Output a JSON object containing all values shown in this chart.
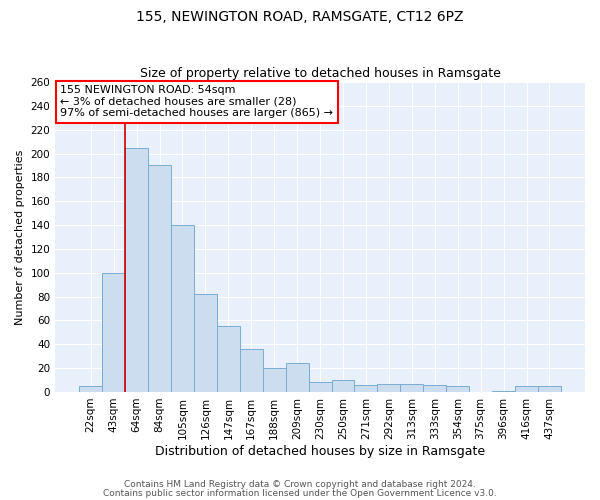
{
  "title": "155, NEWINGTON ROAD, RAMSGATE, CT12 6PZ",
  "subtitle": "Size of property relative to detached houses in Ramsgate",
  "xlabel": "Distribution of detached houses by size in Ramsgate",
  "ylabel": "Number of detached properties",
  "categories": [
    "22sqm",
    "43sqm",
    "64sqm",
    "84sqm",
    "105sqm",
    "126sqm",
    "147sqm",
    "167sqm",
    "188sqm",
    "209sqm",
    "230sqm",
    "250sqm",
    "271sqm",
    "292sqm",
    "313sqm",
    "333sqm",
    "354sqm",
    "375sqm",
    "396sqm",
    "416sqm",
    "437sqm"
  ],
  "values": [
    5,
    100,
    205,
    190,
    140,
    82,
    55,
    36,
    20,
    24,
    8,
    10,
    6,
    7,
    7,
    6,
    5,
    0,
    1,
    5,
    5
  ],
  "bar_color": "#cdddf0",
  "bar_edge_color": "#7aadd4",
  "red_line_x": 1.5,
  "annotation_text": "155 NEWINGTON ROAD: 54sqm\n← 3% of detached houses are smaller (28)\n97% of semi-detached houses are larger (865) →",
  "annotation_box_color": "white",
  "annotation_box_edge_color": "red",
  "red_line_color": "#cc0000",
  "ylim": [
    0,
    260
  ],
  "yticks": [
    0,
    20,
    40,
    60,
    80,
    100,
    120,
    140,
    160,
    180,
    200,
    220,
    240,
    260
  ],
  "background_color": "#e8f0fb",
  "grid_color": "white",
  "footer_line1": "Contains HM Land Registry data © Crown copyright and database right 2024.",
  "footer_line2": "Contains public sector information licensed under the Open Government Licence v3.0.",
  "title_fontsize": 10,
  "subtitle_fontsize": 9,
  "xlabel_fontsize": 9,
  "ylabel_fontsize": 8,
  "tick_fontsize": 7.5,
  "annotation_fontsize": 8,
  "footer_fontsize": 6.5
}
